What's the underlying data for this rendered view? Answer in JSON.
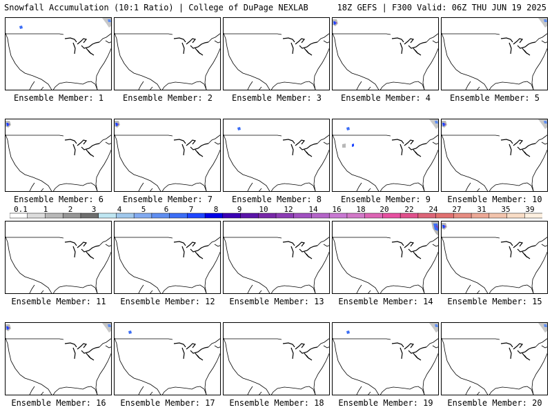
{
  "header": {
    "left_title": "Snowfall Accumulation (10:1 Ratio) | College of DuPage NEXLAB",
    "right_title": "18Z GEFS | F300 Valid: 06Z THU JUN 19 2025"
  },
  "panels": [
    {
      "label": "Ensemble Member: 1",
      "snow": [
        "ne",
        "nw-small"
      ]
    },
    {
      "label": "Ensemble Member: 2",
      "snow": []
    },
    {
      "label": "Ensemble Member: 3",
      "snow": []
    },
    {
      "label": "Ensemble Member: 4",
      "snow": [
        "nw"
      ]
    },
    {
      "label": "Ensemble Member: 5",
      "snow": [
        "ne"
      ]
    },
    {
      "label": "Ensemble Member: 6",
      "snow": [
        "nw"
      ]
    },
    {
      "label": "Ensemble Member: 7",
      "snow": [
        "nw"
      ]
    },
    {
      "label": "Ensemble Member: 8",
      "snow": [
        "nw-small"
      ]
    },
    {
      "label": "Ensemble Member: 9",
      "snow": [
        "ne",
        "nw-small",
        "rockies"
      ]
    },
    {
      "label": "Ensemble Member: 10",
      "snow": [
        "nw",
        "ne"
      ]
    },
    {
      "label": "Ensemble Member: 11",
      "snow": []
    },
    {
      "label": "Ensemble Member: 12",
      "snow": []
    },
    {
      "label": "Ensemble Member: 13",
      "snow": []
    },
    {
      "label": "Ensemble Member: 14",
      "snow": [
        "ne-strong"
      ]
    },
    {
      "label": "Ensemble Member: 15",
      "snow": [
        "nw"
      ]
    },
    {
      "label": "Ensemble Member: 16",
      "snow": [
        "nw",
        "ne"
      ]
    },
    {
      "label": "Ensemble Member: 17",
      "snow": [
        "nw-small"
      ]
    },
    {
      "label": "Ensemble Member: 18",
      "snow": []
    },
    {
      "label": "Ensemble Member: 19",
      "snow": [
        "nw-small",
        "ne"
      ]
    },
    {
      "label": "Ensemble Member: 20",
      "snow": [
        "ne"
      ]
    }
  ],
  "colorbar": {
    "labels": [
      "0.1",
      "1",
      "2",
      "3",
      "4",
      "5",
      "6",
      "7",
      "8",
      "9",
      "10",
      "12",
      "14",
      "16",
      "18",
      "20",
      "22",
      "24",
      "27",
      "31",
      "35",
      "39"
    ],
    "colors": [
      "#ffffff",
      "#dcdcdc",
      "#b8b8b8",
      "#969696",
      "#6e6e6e",
      "#bfe6f2",
      "#a0c8ec",
      "#82aaf0",
      "#5f8ef0",
      "#3c6ef5",
      "#1e46ff",
      "#0000e6",
      "#3a00b4",
      "#5a14a8",
      "#7828a8",
      "#8c3cb4",
      "#a050c0",
      "#b464c8",
      "#c878d2",
      "#d278c8",
      "#dc64b4",
      "#e650a0",
      "#e0508c",
      "#dc6478",
      "#e07070",
      "#e68c82",
      "#eca896",
      "#f2c3ac",
      "#f8dcc6",
      "#fdf0e0"
    ]
  }
}
